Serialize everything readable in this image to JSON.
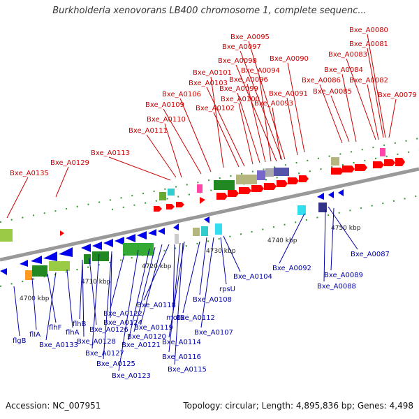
{
  "header": {
    "title": "Burkholderia xenovorans LB400 chromosome 1, complete sequenc..."
  },
  "footer": {
    "accession": "Accession: NC_007951",
    "summary": "Topology: circular; Length: 4,895,836 bp; Genes: 4,498"
  },
  "colors": {
    "forward_label": "#cc0000",
    "reverse_label": "#0000aa",
    "backbone": "#999999",
    "forward_gene": "#ff0000",
    "reverse_gene": "#0000ee"
  },
  "scale_labels": [
    "4700 kbp",
    "4710 kbp",
    "4720 kbp",
    "4730 kbp",
    "4740 kbp",
    "4750 kbp"
  ],
  "top_labels": [
    "Bxe_A0080",
    "Bxe_A0081",
    "Bxe_A0083",
    "Bxe_A0084",
    "Bxe_A0082",
    "Bxe_A0086",
    "Bxe_A0085",
    "Bxe_A0079",
    "Bxe_A0095",
    "Bxe_A0097",
    "Bxe_A0098",
    "Bxe_A0090",
    "Bxe_A0094",
    "Bxe_A0101",
    "Bxe_A0096",
    "Bxe_A0103",
    "Bxe_A0099",
    "Bxe_A0091",
    "Bxe_A0106",
    "Bxe_A0100",
    "Bxe_A0093",
    "Bxe_A0109",
    "Bxe_A0102",
    "Bxe_A0110",
    "Bxe_A0111",
    "Bxe_A0113",
    "Bxe_A0129",
    "Bxe_A0135"
  ],
  "bottom_labels": [
    "Bxe_A0087",
    "Bxe_A0092",
    "Bxe_A0089",
    "Bxe_A0088",
    "Bxe_A0104",
    "rpsU",
    "Bxe_A0108",
    "Bxe_A0118",
    "Bxe_A0112",
    "Bxe_A0122",
    "motB",
    "Bxe_A0124",
    "Bxe_A0119",
    "Bxe_A0107",
    "flhB",
    "Bxe_A0126",
    "Bxe_A0120",
    "flhF",
    "flhA",
    "Bxe_A0114",
    "flIA",
    "Bxe_A0128",
    "Bxe_A0121",
    "flgB",
    "Bxe_A0133",
    "Bxe_A0127",
    "Bxe_A0116",
    "Bxe_A0125",
    "Bxe_A0115",
    "Bxe_A0123"
  ]
}
